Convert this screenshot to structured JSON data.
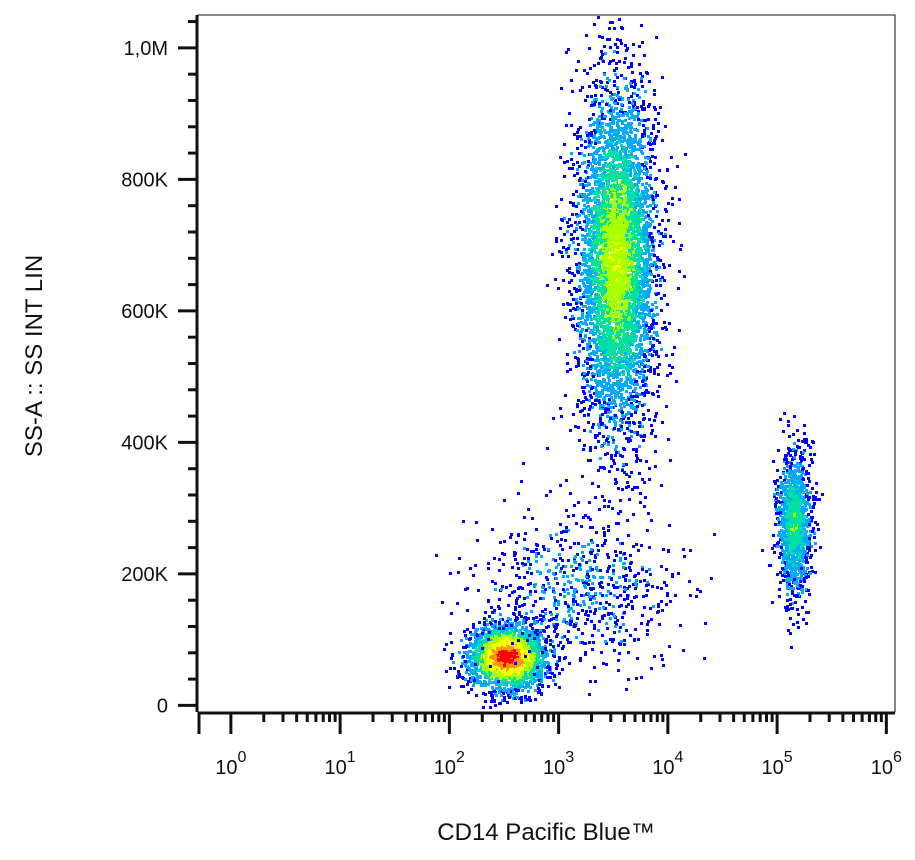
{
  "chart_data": {
    "type": "scatter",
    "subtype": "flow-cytometry-density-dot-plot",
    "xlabel": "CD14 Pacific Blue™",
    "ylabel": "SS-A :: SS INT LIN",
    "x_scale": "log",
    "y_scale": "linear",
    "xlim": [
      0.5,
      1200000
    ],
    "ylim": [
      -10000,
      1050000
    ],
    "x_ticks": [
      {
        "value": 1,
        "base": "10",
        "exp": "0"
      },
      {
        "value": 10,
        "base": "10",
        "exp": "1"
      },
      {
        "value": 100,
        "base": "10",
        "exp": "2"
      },
      {
        "value": 1000,
        "base": "10",
        "exp": "3"
      },
      {
        "value": 10000,
        "base": "10",
        "exp": "4"
      },
      {
        "value": 100000,
        "base": "10",
        "exp": "5"
      },
      {
        "value": 1000000,
        "base": "10",
        "exp": "6"
      }
    ],
    "y_ticks": [
      {
        "value": 0,
        "label": "0"
      },
      {
        "value": 200000,
        "label": "200K"
      },
      {
        "value": 400000,
        "label": "400K"
      },
      {
        "value": 600000,
        "label": "600K"
      },
      {
        "value": 800000,
        "label": "800K"
      },
      {
        "value": 1000000,
        "label": "1,0M"
      }
    ],
    "grid": false,
    "legend": "none",
    "color_scale": [
      "#0000ff",
      "#00aaff",
      "#00e0a0",
      "#aaff00",
      "#ffff00",
      "#ff9900",
      "#ff0000"
    ],
    "populations": [
      {
        "center_x": 330,
        "center_y": 75000,
        "log_spread_x": 0.18,
        "spread_y": 25000,
        "count": 2400,
        "peak_density": 1.0
      },
      {
        "center_x": 3300,
        "center_y": 680000,
        "log_spread_x": 0.18,
        "spread_y": 130000,
        "count": 5200,
        "peak_density": 0.55
      },
      {
        "center_x": 140000,
        "center_y": 280000,
        "log_spread_x": 0.08,
        "spread_y": 55000,
        "count": 1300,
        "peak_density": 0.4
      },
      {
        "center_x": 1500,
        "center_y": 180000,
        "log_spread_x": 0.45,
        "spread_y": 60000,
        "count": 700,
        "peak_density": 0.1
      }
    ]
  }
}
